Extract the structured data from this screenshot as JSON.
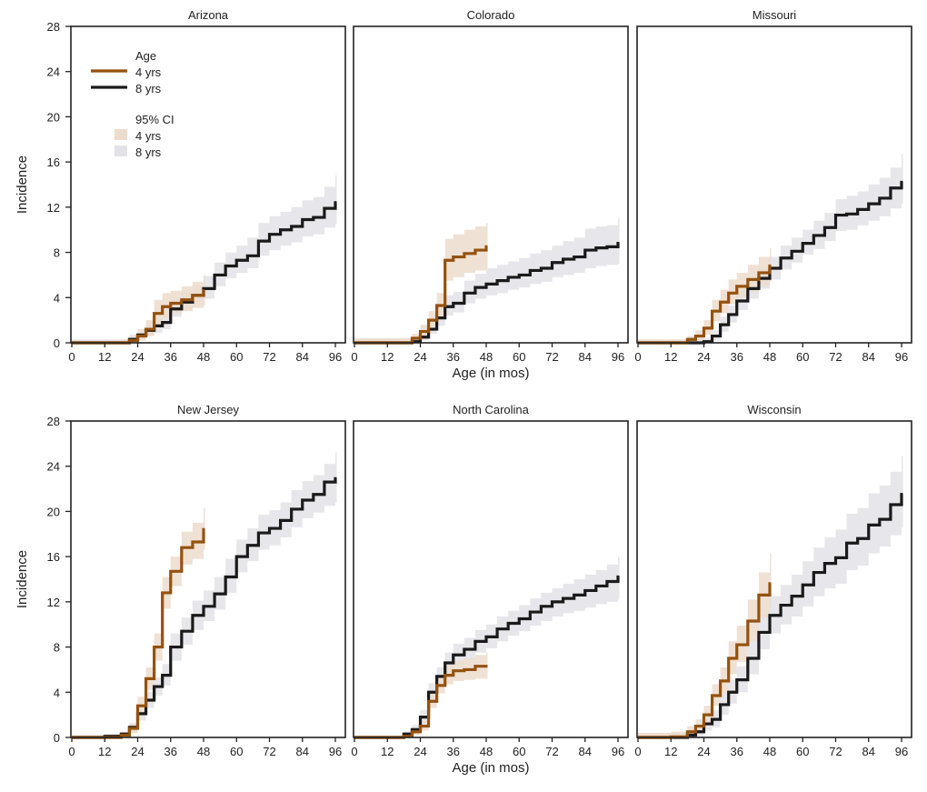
{
  "chart_data": {
    "type": "line",
    "subtype": "step",
    "xlabel": "Age (in mos)",
    "ylabel": "Incidence",
    "xlim": [
      0,
      96
    ],
    "ylim": [
      0,
      28
    ],
    "xticks": [
      0,
      12,
      24,
      36,
      48,
      60,
      72,
      84,
      96
    ],
    "yticks": [
      0,
      4,
      8,
      12,
      16,
      20,
      24,
      28
    ],
    "grid": false,
    "legend": {
      "placement": "top-left of first panel",
      "line_title": "Age",
      "ci_title": "95% CI",
      "entries": [
        "4 yrs",
        "8 yrs"
      ]
    },
    "colors": {
      "4 yrs": "#94520f",
      "8 yrs": "#1a1a1a",
      "ci_4 yrs": "#ecdccd",
      "ci_8 yrs": "#e2e2e8"
    },
    "x_8yrs": [
      0,
      12,
      18,
      21,
      24,
      27,
      30,
      33,
      36,
      40,
      44,
      48,
      52,
      56,
      60,
      64,
      68,
      72,
      76,
      80,
      84,
      88,
      92,
      96
    ],
    "x_4yrs": [
      0,
      12,
      18,
      21,
      24,
      27,
      30,
      33,
      36,
      40,
      44,
      48
    ],
    "panels": [
      {
        "title": "Arizona",
        "series": [
          {
            "name": "8 yrs",
            "values": [
              0,
              0,
              0,
              0.3,
              0.7,
              1.1,
              1.5,
              1.8,
              3.0,
              3.6,
              4.2,
              4.8,
              6.0,
              6.8,
              7.3,
              7.7,
              9.0,
              9.6,
              10.0,
              10.3,
              10.9,
              11.1,
              11.9,
              12.4
            ],
            "ci_lower": [
              0,
              0,
              0,
              0,
              0.3,
              0.6,
              0.9,
              1.2,
              2.3,
              2.9,
              3.4,
              3.9,
              5.0,
              5.7,
              6.2,
              6.6,
              7.7,
              8.2,
              8.6,
              8.9,
              9.4,
              9.6,
              10.2,
              10.5
            ],
            "ci_upper": [
              0.3,
              0.3,
              0.3,
              0.7,
              1.2,
              1.7,
              2.2,
              2.6,
              3.8,
              4.5,
              5.1,
              5.9,
              7.1,
              8.0,
              8.6,
              9.3,
              10.6,
              11.2,
              11.6,
              12.0,
              12.6,
              12.9,
              13.8,
              14.8
            ]
          },
          {
            "name": "4 yrs",
            "values": [
              0,
              0,
              0,
              0.2,
              0.6,
              1.2,
              2.6,
              3.2,
              3.5,
              3.8,
              4.2,
              4.6
            ],
            "ci_lower": [
              0,
              0,
              0,
              0,
              0.2,
              0.6,
              1.6,
              2.2,
              2.6,
              2.8,
              3.1,
              3.3
            ],
            "ci_upper": [
              0.2,
              0.2,
              0.3,
              0.6,
              1.2,
              2.0,
              3.8,
              4.4,
              4.6,
              5.0,
              5.4,
              6.0
            ]
          }
        ]
      },
      {
        "title": "Colorado",
        "series": [
          {
            "name": "8 yrs",
            "values": [
              0,
              0,
              0,
              0.1,
              0.5,
              1.2,
              2.2,
              3.2,
              3.5,
              4.4,
              4.9,
              5.2,
              5.5,
              5.8,
              6.0,
              6.4,
              6.6,
              7.1,
              7.4,
              7.6,
              8.2,
              8.4,
              8.5,
              8.8
            ],
            "ci_lower": [
              0,
              0,
              0,
              0,
              0.2,
              0.8,
              1.5,
              2.4,
              2.7,
              3.5,
              3.9,
              4.2,
              4.4,
              4.7,
              4.9,
              5.2,
              5.4,
              5.8,
              6.0,
              6.2,
              6.6,
              6.8,
              6.9,
              7.0
            ],
            "ci_upper": [
              0.4,
              0.4,
              0.4,
              0.5,
              1.0,
              1.7,
              3.0,
              4.2,
              4.5,
              5.5,
              6.1,
              6.6,
              6.9,
              7.2,
              7.5,
              7.9,
              8.2,
              8.6,
              9.0,
              9.3,
              10.1,
              10.3,
              10.4,
              11.0
            ]
          },
          {
            "name": "4 yrs",
            "values": [
              0,
              0,
              0,
              0.4,
              1.0,
              2.0,
              3.3,
              7.3,
              7.6,
              7.9,
              8.2,
              8.5
            ],
            "ci_lower": [
              0,
              0,
              0,
              0.1,
              0.5,
              1.3,
              2.4,
              5.5,
              5.8,
              6.2,
              6.4,
              6.6
            ],
            "ci_upper": [
              0.4,
              0.4,
              0.4,
              0.8,
              1.6,
              2.8,
              4.4,
              9.2,
              9.6,
              10.0,
              10.3,
              10.6
            ]
          }
        ]
      },
      {
        "title": "Missouri",
        "series": [
          {
            "name": "8 yrs",
            "values": [
              0,
              0,
              0,
              0,
              0.1,
              0.6,
              1.6,
              2.5,
              3.7,
              4.8,
              5.7,
              6.6,
              7.5,
              8.1,
              8.8,
              9.5,
              10.2,
              11.3,
              11.4,
              11.8,
              12.3,
              12.8,
              13.7,
              14.2
            ],
            "ci_lower": [
              0,
              0,
              0,
              0,
              0,
              0.2,
              1.0,
              1.8,
              2.9,
              3.9,
              4.8,
              5.6,
              6.5,
              7.1,
              7.8,
              8.3,
              9.0,
              9.9,
              10.0,
              10.4,
              10.8,
              11.2,
              11.9,
              12.3
            ],
            "ci_upper": [
              0.3,
              0.3,
              0.3,
              0.3,
              0.4,
              1.1,
              2.3,
              3.3,
              4.6,
              5.7,
              6.7,
              7.6,
              8.6,
              9.3,
              10.0,
              10.8,
              11.5,
              12.7,
              13.0,
              13.4,
              14.0,
              14.6,
              15.5,
              16.7
            ]
          },
          {
            "name": "4 yrs",
            "values": [
              0,
              0,
              0.3,
              0.6,
              1.3,
              2.8,
              3.6,
              4.4,
              5.0,
              5.6,
              6.2,
              6.8
            ],
            "ci_lower": [
              0,
              0,
              0,
              0.2,
              0.7,
              1.9,
              2.6,
              3.4,
              4.0,
              4.5,
              5.0,
              5.4
            ],
            "ci_upper": [
              0.3,
              0.3,
              0.6,
              1.1,
              2.0,
              3.8,
              4.7,
              5.6,
              6.2,
              6.9,
              7.6,
              8.4
            ]
          }
        ]
      },
      {
        "title": "New Jersey",
        "series": [
          {
            "name": "8 yrs",
            "values": [
              0,
              0.1,
              0.3,
              0.9,
              2.1,
              3.3,
              4.5,
              5.5,
              8.0,
              9.4,
              10.8,
              11.6,
              12.7,
              14.2,
              16.0,
              17.0,
              18.1,
              18.5,
              19.2,
              20.2,
              21.0,
              21.5,
              22.6,
              22.9
            ],
            "ci_lower": [
              0,
              0,
              0,
              0.5,
              1.5,
              2.6,
              3.7,
              4.6,
              6.8,
              8.2,
              9.5,
              10.3,
              11.3,
              12.8,
              14.6,
              15.6,
              16.6,
              17.0,
              17.7,
              18.6,
              19.4,
              19.9,
              20.5,
              20.8
            ],
            "ci_upper": [
              0.2,
              0.3,
              0.5,
              1.3,
              2.7,
              4.0,
              5.3,
              6.5,
              9.2,
              10.6,
              12.1,
              13.0,
              14.2,
              15.8,
              17.5,
              18.5,
              19.7,
              20.1,
              20.8,
              21.9,
              22.7,
              23.2,
              24.2,
              25.2
            ]
          },
          {
            "name": "4 yrs",
            "values": [
              0,
              0,
              0.2,
              0.8,
              2.8,
              5.2,
              8.0,
              12.8,
              14.7,
              16.8,
              17.3,
              18.4
            ],
            "ci_lower": [
              0,
              0,
              0,
              0.4,
              2.0,
              4.2,
              6.8,
              11.4,
              13.4,
              15.3,
              15.8,
              16.6
            ],
            "ci_upper": [
              0.2,
              0.2,
              0.4,
              1.2,
              3.6,
              6.2,
              9.2,
              14.2,
              16.0,
              18.2,
              19.0,
              20.3
            ]
          }
        ]
      },
      {
        "title": "North Carolina",
        "series": [
          {
            "name": "8 yrs",
            "values": [
              0,
              0,
              0.3,
              0.7,
              1.8,
              4.0,
              5.4,
              6.6,
              7.3,
              7.8,
              8.5,
              8.9,
              9.6,
              10.1,
              10.5,
              11.1,
              11.6,
              12.0,
              12.3,
              12.6,
              13.0,
              13.4,
              13.8,
              14.2
            ],
            "ci_lower": [
              0,
              0,
              0.1,
              0.4,
              1.3,
              3.3,
              4.6,
              5.8,
              6.4,
              6.9,
              7.5,
              7.9,
              8.5,
              9.0,
              9.4,
              9.9,
              10.3,
              10.7,
              11.0,
              11.2,
              11.5,
              11.8,
              12.0,
              12.2
            ],
            "ci_upper": [
              0.1,
              0.1,
              0.5,
              1.1,
              2.4,
              4.8,
              6.2,
              7.5,
              8.3,
              8.8,
              9.5,
              10.0,
              10.7,
              11.2,
              11.7,
              12.3,
              12.8,
              13.2,
              13.6,
              14.0,
              14.4,
              14.8,
              15.3,
              16.0
            ]
          },
          {
            "name": "4 yrs",
            "values": [
              0,
              0,
              0.1,
              0.5,
              1.0,
              3.2,
              4.6,
              5.5,
              5.9,
              6.0,
              6.3,
              6.3
            ],
            "ci_lower": [
              0,
              0,
              0,
              0.2,
              0.6,
              2.6,
              3.9,
              4.7,
              5.0,
              5.1,
              5.2,
              5.2
            ],
            "ci_upper": [
              0.1,
              0.1,
              0.3,
              0.8,
              1.5,
              3.9,
              5.4,
              6.4,
              6.8,
              7.0,
              7.3,
              7.5
            ]
          }
        ]
      },
      {
        "title": "Wisconsin",
        "series": [
          {
            "name": "8 yrs",
            "values": [
              0,
              0,
              0.2,
              0.5,
              1.2,
              1.6,
              2.9,
              4.0,
              5.1,
              7.0,
              9.3,
              10.8,
              11.7,
              12.5,
              13.5,
              14.6,
              15.4,
              15.9,
              17.2,
              17.6,
              18.8,
              19.3,
              20.6,
              21.5
            ],
            "ci_lower": [
              0,
              0,
              0,
              0.1,
              0.6,
              0.9,
              2.0,
              3.0,
              4.0,
              5.6,
              7.8,
              9.2,
              10.0,
              10.7,
              11.6,
              12.5,
              13.2,
              13.6,
              14.8,
              15.2,
              16.3,
              16.9,
              17.9,
              18.6
            ],
            "ci_upper": [
              0.4,
              0.4,
              0.6,
              1.0,
              1.9,
              2.4,
              3.9,
              5.1,
              6.3,
              8.5,
              10.9,
              12.5,
              13.5,
              14.4,
              15.6,
              16.8,
              17.7,
              18.4,
              19.8,
              20.3,
              21.6,
              22.3,
              23.5,
              24.9
            ]
          },
          {
            "name": "4 yrs",
            "values": [
              0,
              0.05,
              0.5,
              1.0,
              2.0,
              3.7,
              5.0,
              7.0,
              8.2,
              10.3,
              12.6,
              13.6
            ],
            "ci_lower": [
              0,
              0,
              0.1,
              0.5,
              1.3,
              2.8,
              3.9,
              5.6,
              6.7,
              8.5,
              10.6,
              11.5
            ],
            "ci_upper": [
              0.4,
              0.5,
              1.0,
              1.6,
              2.8,
              4.7,
              6.2,
              8.5,
              9.9,
              12.2,
              14.6,
              16.3
            ]
          }
        ]
      }
    ]
  }
}
